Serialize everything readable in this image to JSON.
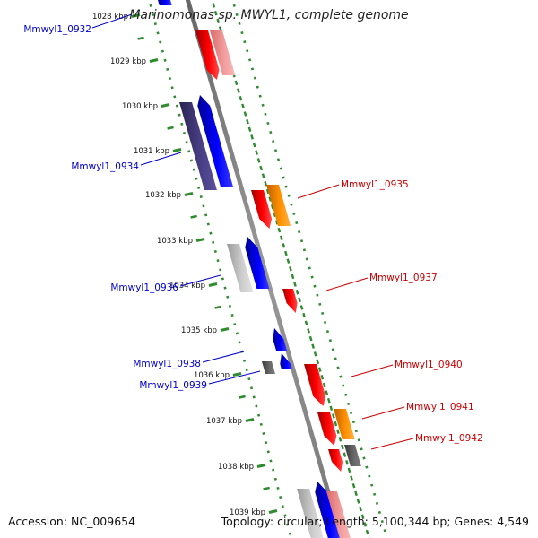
{
  "title": "Marinomonas sp. MWYL1, complete genome",
  "footer": {
    "accession": "Accession: NC_009654",
    "summary": "Topology: circular; Length: 5,100,344 bp; Genes: 4,549"
  },
  "colors": {
    "forward_strand_label": "#0000cc",
    "reverse_strand_label": "#cc0000",
    "backbone": "#888888",
    "guide_dots": "#2e8b2e"
  },
  "ruler": [
    {
      "label": "1028 kbp",
      "kbp": 1028
    },
    {
      "label": "1029 kbp",
      "kbp": 1029
    },
    {
      "label": "1030 kbp",
      "kbp": 1030
    },
    {
      "label": "1031 kbp",
      "kbp": 1031
    },
    {
      "label": "1032 kbp",
      "kbp": 1032
    },
    {
      "label": "1033 kbp",
      "kbp": 1033
    },
    {
      "label": "1034 kbp",
      "kbp": 1034
    },
    {
      "label": "1035 kbp",
      "kbp": 1035
    },
    {
      "label": "1036 kbp",
      "kbp": 1036
    },
    {
      "label": "1037 kbp",
      "kbp": 1037
    },
    {
      "label": "1038 kbp",
      "kbp": 1038
    },
    {
      "label": "1039 kbp",
      "kbp": 1039
    }
  ],
  "gene_labels": [
    {
      "text": "Mmwyl1_0932",
      "strand": "forward"
    },
    {
      "text": "Mmwyl1_0934",
      "strand": "forward"
    },
    {
      "text": "Mmwyl1_0935",
      "strand": "reverse"
    },
    {
      "text": "Mmwyl1_0936",
      "strand": "forward"
    },
    {
      "text": "Mmwyl1_0937",
      "strand": "reverse"
    },
    {
      "text": "Mmwyl1_0938",
      "strand": "forward"
    },
    {
      "text": "Mmwyl1_0939",
      "strand": "forward"
    },
    {
      "text": "Mmwyl1_0940",
      "strand": "reverse"
    },
    {
      "text": "Mmwyl1_0941",
      "strand": "reverse"
    },
    {
      "text": "Mmwyl1_0942",
      "strand": "reverse"
    }
  ]
}
